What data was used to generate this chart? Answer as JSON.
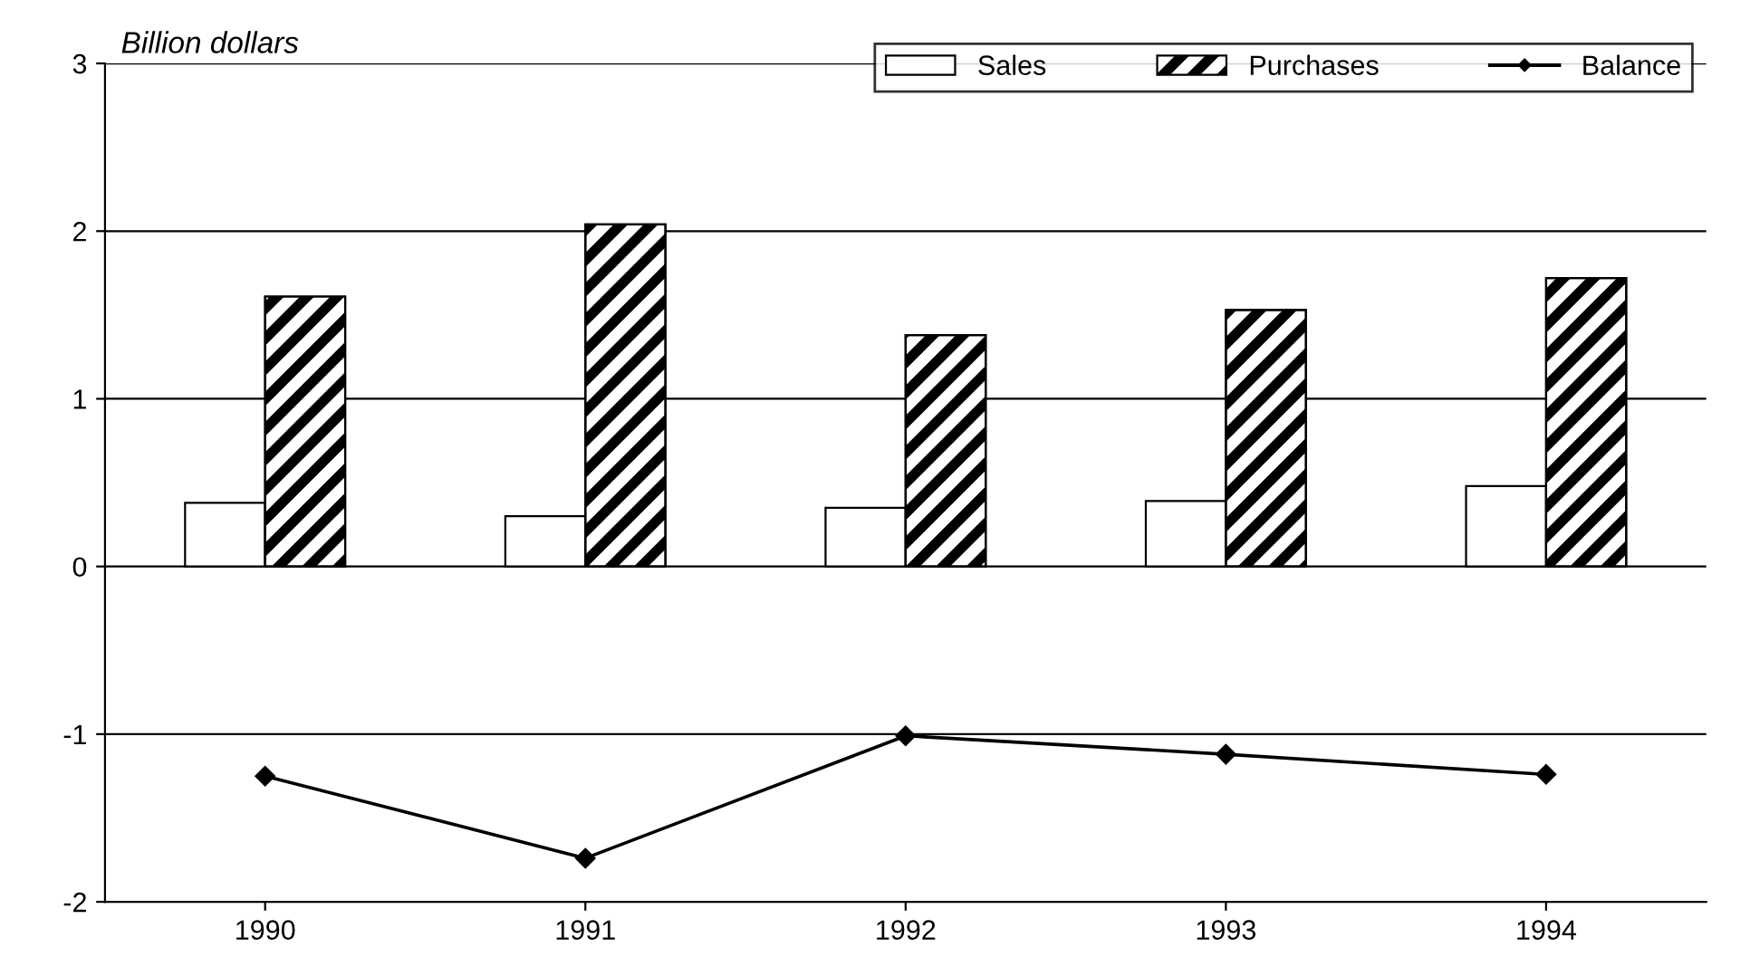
{
  "chart_data": {
    "type": "bar",
    "ylabel": "Billion dollars",
    "categories": [
      "1990",
      "1991",
      "1992",
      "1993",
      "1994"
    ],
    "series": [
      {
        "name": "Sales",
        "color": "#ffffff",
        "values": [
          0.38,
          0.3,
          0.35,
          0.39,
          0.48
        ]
      },
      {
        "name": "Purchases",
        "color": "#000000",
        "values": [
          1.61,
          2.04,
          1.38,
          1.53,
          1.72
        ]
      },
      {
        "name": "Balance",
        "type": "line",
        "color": "#000000",
        "values": [
          -1.25,
          -1.74,
          -1.01,
          -1.12,
          -1.24
        ]
      }
    ],
    "ylim": [
      -2,
      3
    ],
    "yticks": [
      -2,
      -1,
      0,
      1,
      2,
      3
    ],
    "grid": "y",
    "legend": "top right",
    "marker": "diamond",
    "line_style": "solid"
  }
}
